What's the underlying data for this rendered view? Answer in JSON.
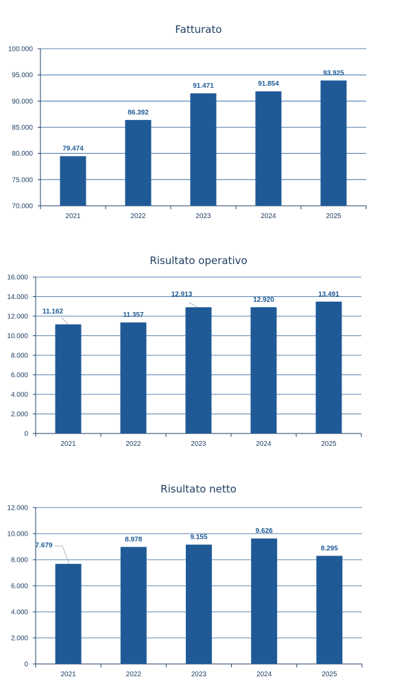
{
  "chart_data": [
    {
      "type": "bar",
      "title": "Fatturato",
      "categories": [
        "2021",
        "2022",
        "2023",
        "2024",
        "2025"
      ],
      "values": [
        79474,
        86392,
        91471,
        91854,
        93925
      ],
      "value_labels": [
        "79.474",
        "86.392",
        "91.471",
        "91.854",
        "93.925"
      ],
      "ylim": [
        70000,
        100000
      ],
      "yticks": [
        70000,
        75000,
        80000,
        85000,
        90000,
        95000,
        100000
      ],
      "ytick_labels": [
        "70.000",
        "75.000",
        "80.000",
        "85.000",
        "90.000",
        "95.000",
        "100.000"
      ],
      "grid": true,
      "legend": "none",
      "colors": {
        "bar": "#1f5a96",
        "label": "#1f5a96",
        "grid": "#1f5a96",
        "axis": "#1f3e63"
      }
    },
    {
      "type": "bar",
      "title": "Risultato operativo",
      "categories": [
        "2021",
        "2022",
        "2023",
        "2024",
        "2025"
      ],
      "values": [
        11162,
        11357,
        12913,
        12920,
        13491
      ],
      "value_labels": [
        "11.162",
        "11.357",
        "12.913",
        "12.920",
        "13.491"
      ],
      "ylim": [
        0,
        16000
      ],
      "yticks": [
        0,
        2000,
        4000,
        6000,
        8000,
        10000,
        12000,
        14000,
        16000
      ],
      "ytick_labels": [
        "0",
        "2.000",
        "4.000",
        "6.000",
        "8.000",
        "10.000",
        "12.000",
        "14.000",
        "16.000"
      ],
      "grid": true,
      "legend": "none",
      "colors": {
        "bar": "#1f5a96",
        "label": "#1f5a96",
        "grid": "#1f5a96",
        "axis": "#1f3e63"
      }
    },
    {
      "type": "bar",
      "title": "Risultato netto",
      "categories": [
        "2021",
        "2022",
        "2023",
        "2024",
        "2025"
      ],
      "values": [
        7679,
        8978,
        9155,
        9626,
        8295
      ],
      "value_labels": [
        "7.679",
        "8.978",
        "9.155",
        "9.626",
        "8.295"
      ],
      "ylim": [
        0,
        12000
      ],
      "yticks": [
        0,
        2000,
        4000,
        6000,
        8000,
        10000,
        12000
      ],
      "ytick_labels": [
        "0",
        "2.000",
        "4.000",
        "6.000",
        "8.000",
        "10.000",
        "12.000"
      ],
      "grid": true,
      "legend": "none",
      "colors": {
        "bar": "#1f5a96",
        "label": "#1f5a96",
        "grid": "#1f5a96",
        "axis": "#1f3e63"
      }
    }
  ]
}
